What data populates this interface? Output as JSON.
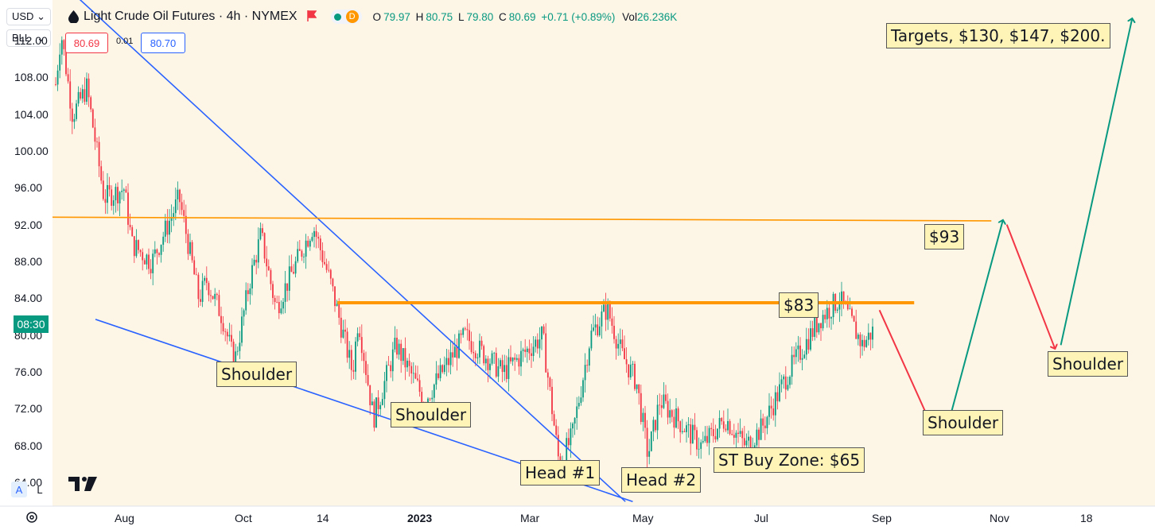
{
  "header": {
    "currency": "USD",
    "unit": "BLL",
    "symbol_title": "Light Crude Oil Futures · 4h · NYMEX",
    "market_status_letter": "D",
    "ohlc": {
      "o_label": "O",
      "o": "79.97",
      "h_label": "H",
      "h": "80.75",
      "l_label": "L",
      "l": "79.80",
      "c_label": "C",
      "c": "80.69",
      "change": "+0.71 (+0.89%)",
      "vol_label": "Vol",
      "vol": "26.236K"
    },
    "bid": "80.69",
    "spread": "0.01",
    "ask": "80.70"
  },
  "countdown": "08:30",
  "scale_buttons": {
    "auto": "A",
    "log": "L"
  },
  "colors": {
    "up": "#089981",
    "down": "#f23645",
    "trendline": "#2962ff",
    "resistance": "#ff9800",
    "arrow_down": "#f23645",
    "arrow_up": "#089981",
    "note_bg": "#fff4b8",
    "plot_bg": "#fdf5e6"
  },
  "chart_data": {
    "type": "candlestick",
    "title": "Light Crude Oil Futures · 4h · NYMEX",
    "ylim": [
      61.5,
      116.5
    ],
    "y_ticks": [
      "64.00",
      "68.00",
      "72.00",
      "76.00",
      "80.00",
      "84.00",
      "88.00",
      "92.00",
      "96.00",
      "100.00",
      "104.00",
      "108.00",
      "112.00"
    ],
    "x_ticks": [
      {
        "label": "Aug",
        "x": "2022-08-01"
      },
      {
        "label": "Oct",
        "x": "2022-10-01"
      },
      {
        "label": "14",
        "x": "2022-11-14"
      },
      {
        "label": "2023",
        "x": "2023-01-01"
      },
      {
        "label": "Mar",
        "x": "2023-03-01"
      },
      {
        "label": "May",
        "x": "2023-05-01"
      },
      {
        "label": "Jul",
        "x": "2023-07-01"
      },
      {
        "label": "Sep",
        "x": "2023-09-01"
      },
      {
        "label": "Nov",
        "x": "2023-11-01"
      },
      {
        "label": "18",
        "x": "2023-12-18"
      }
    ],
    "xlim": [
      "2022-07-07",
      "2024-01-07"
    ],
    "price_path": [
      {
        "x": "2022-07-07",
        "y": 104
      },
      {
        "x": "2022-07-10",
        "y": 113
      },
      {
        "x": "2022-07-14",
        "y": 104
      },
      {
        "x": "2022-07-19",
        "y": 107
      },
      {
        "x": "2022-07-25",
        "y": 95
      },
      {
        "x": "2022-08-01",
        "y": 96
      },
      {
        "x": "2022-08-05",
        "y": 90
      },
      {
        "x": "2022-08-15",
        "y": 88
      },
      {
        "x": "2022-08-29",
        "y": 95
      },
      {
        "x": "2022-09-08",
        "y": 84
      },
      {
        "x": "2022-09-12",
        "y": 86
      },
      {
        "x": "2022-09-20",
        "y": 82
      },
      {
        "x": "2022-09-26",
        "y": 77
      },
      {
        "x": "2022-10-04",
        "y": 86
      },
      {
        "x": "2022-10-10",
        "y": 91
      },
      {
        "x": "2022-10-18",
        "y": 83
      },
      {
        "x": "2022-11-07",
        "y": 92
      },
      {
        "x": "2022-11-16",
        "y": 86
      },
      {
        "x": "2022-11-28",
        "y": 76
      },
      {
        "x": "2022-12-01",
        "y": 82
      },
      {
        "x": "2022-12-09",
        "y": 71
      },
      {
        "x": "2022-12-21",
        "y": 79
      },
      {
        "x": "2023-01-05",
        "y": 73
      },
      {
        "x": "2023-01-26",
        "y": 80
      },
      {
        "x": "2023-02-15",
        "y": 76
      },
      {
        "x": "2023-03-08",
        "y": 80
      },
      {
        "x": "2023-03-17",
        "y": 66
      },
      {
        "x": "2023-03-24",
        "y": 69
      },
      {
        "x": "2023-04-03",
        "y": 80
      },
      {
        "x": "2023-04-12",
        "y": 83
      },
      {
        "x": "2023-04-20",
        "y": 78
      },
      {
        "x": "2023-04-28",
        "y": 75
      },
      {
        "x": "2023-05-04",
        "y": 67
      },
      {
        "x": "2023-05-10",
        "y": 73
      },
      {
        "x": "2023-05-31",
        "y": 68
      },
      {
        "x": "2023-06-12",
        "y": 71
      },
      {
        "x": "2023-06-22",
        "y": 68
      },
      {
        "x": "2023-06-30",
        "y": 70
      },
      {
        "x": "2023-07-14",
        "y": 76
      },
      {
        "x": "2023-07-31",
        "y": 82
      },
      {
        "x": "2023-08-10",
        "y": 84
      },
      {
        "x": "2023-08-22",
        "y": 79
      },
      {
        "x": "2023-08-28",
        "y": 80.7
      }
    ],
    "resistance_lines": [
      {
        "name": "upper",
        "x1": "2022-07-07",
        "y1": 92.9,
        "x2": "2023-10-28",
        "y2": 92.5
      },
      {
        "name": "neckline",
        "x1": "2022-11-20",
        "y1": 83.6,
        "x2": "2023-09-18",
        "y2": 83.6
      }
    ],
    "trend_lines": [
      {
        "name": "falling-upper",
        "x1": "2022-07-08",
        "y1": 119,
        "x2": "2023-04-22",
        "y2": 62
      },
      {
        "name": "falling-lower",
        "x1": "2022-07-22",
        "y1": 81.8,
        "x2": "2023-04-26",
        "y2": 62
      }
    ],
    "projection_arrows": [
      {
        "name": "down-1",
        "color": "down",
        "x1": "2023-08-31",
        "y1": 82.8,
        "x2": "2023-09-28",
        "y2": 69.8
      },
      {
        "name": "up-1",
        "color": "up",
        "x1": "2023-10-07",
        "y1": 71.5,
        "x2": "2023-11-03",
        "y2": 92.6
      },
      {
        "name": "down-2",
        "color": "down",
        "x1": "2023-11-05",
        "y1": 92.1,
        "x2": "2023-11-30",
        "y2": 78.6
      },
      {
        "name": "up-2",
        "color": "up",
        "x1": "2023-12-03",
        "y1": 79,
        "x2": "2023-12-31",
        "y2": 114.5
      }
    ],
    "annotations": [
      {
        "name": "shoulder-1",
        "text": "Shoulder"
      },
      {
        "name": "shoulder-2",
        "text": "Shoulder"
      },
      {
        "name": "head-1",
        "text": "Head #1"
      },
      {
        "name": "head-2",
        "text": "Head #2"
      },
      {
        "name": "buy-zone",
        "text": "ST Buy Zone: $65"
      },
      {
        "name": "level-83",
        "text": "$83"
      },
      {
        "name": "level-93",
        "text": "$93"
      },
      {
        "name": "shoulder-3",
        "text": "Shoulder"
      },
      {
        "name": "shoulder-4",
        "text": "Shoulder"
      },
      {
        "name": "targets",
        "text": "Targets, $130, $147, $200."
      }
    ]
  }
}
